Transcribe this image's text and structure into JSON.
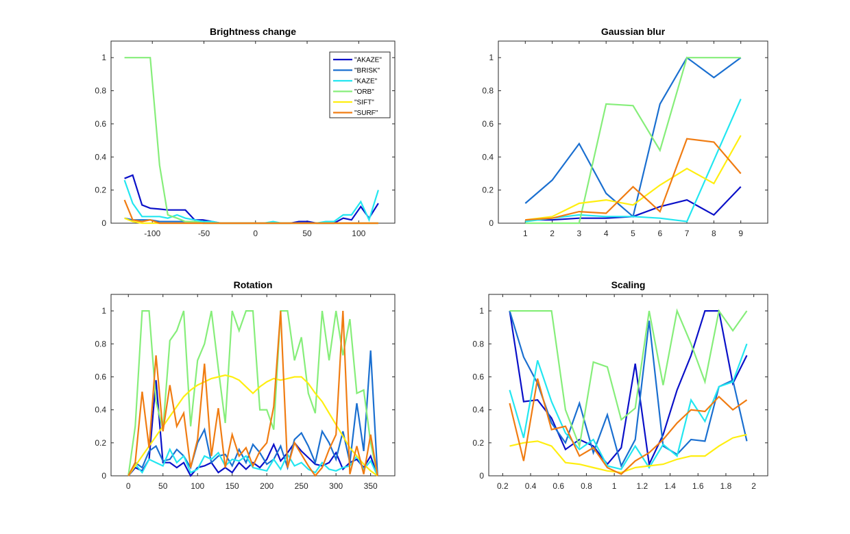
{
  "colors": {
    "AKAZE": "#0a10c8",
    "BRISK": "#1a6fd0",
    "KAZE": "#22e6f0",
    "ORB": "#86ee7a",
    "SIFT": "#ffee10",
    "SURF": "#f07c12"
  },
  "chart_data": [
    {
      "type": "line",
      "title": "Brightness change",
      "xlabel": "",
      "ylabel": "",
      "xlim": [
        -140,
        135
      ],
      "ylim": [
        0,
        1.1
      ],
      "xticks": [
        -100,
        -50,
        0,
        50,
        100
      ],
      "yticks": [
        0,
        0.2,
        0.4,
        0.6,
        0.8,
        1
      ],
      "legend": {
        "placement": "top-right",
        "entries": [
          "\"AKAZE\"",
          "\"BRISK\"",
          "\"KAZE\"",
          "\"ORB\"",
          "\"SIFT\"",
          "\"SURF\""
        ]
      },
      "x": [
        -127,
        -119,
        -110,
        -102,
        -93,
        -85,
        -76,
        -68,
        -59,
        -51,
        -42,
        -34,
        -25,
        -17,
        -8,
        0,
        8,
        17,
        25,
        34,
        42,
        51,
        59,
        68,
        76,
        85,
        93,
        102,
        110,
        119
      ],
      "series": [
        {
          "name": "\"AKAZE\"",
          "values": [
            0.27,
            0.29,
            0.11,
            0.09,
            0.085,
            0.08,
            0.08,
            0.08,
            0.02,
            0.02,
            0.01,
            0,
            0,
            0,
            0,
            0,
            0,
            0,
            0,
            0,
            0.01,
            0.01,
            0,
            0,
            0,
            0.03,
            0.02,
            0.1,
            0.03,
            0.12
          ]
        },
        {
          "name": "\"BRISK\"",
          "values": [
            0.03,
            0.02,
            0.02,
            0.02,
            0.01,
            0.01,
            0.01,
            0.01,
            0.01,
            0,
            0,
            0,
            0,
            0,
            0,
            0,
            0,
            0,
            0,
            0,
            0,
            0,
            0,
            0,
            0,
            0,
            0,
            0,
            0,
            0
          ]
        },
        {
          "name": "\"KAZE\"",
          "values": [
            0.26,
            0.12,
            0.04,
            0.04,
            0.04,
            0.03,
            0.05,
            0.03,
            0.02,
            0.01,
            0.01,
            0,
            0,
            0,
            0,
            0,
            0,
            0.01,
            0,
            0,
            0,
            0,
            0,
            0.01,
            0.01,
            0.05,
            0.05,
            0.13,
            0.02,
            0.2
          ]
        },
        {
          "name": "\"ORB\"",
          "values": [
            1,
            1,
            1,
            1,
            0.35,
            0.05,
            0.03,
            0.01,
            0.01,
            0,
            0,
            0,
            0,
            0,
            0,
            0,
            0,
            0,
            0,
            0,
            0,
            0,
            0,
            0,
            0,
            0,
            0,
            0,
            0,
            0
          ]
        },
        {
          "name": "\"SIFT\"",
          "values": [
            0.03,
            0.01,
            0,
            0,
            0,
            0,
            0,
            0,
            0,
            0,
            0,
            0,
            0,
            0,
            0,
            0,
            0,
            0,
            0,
            0,
            0,
            0,
            0,
            0,
            0,
            0,
            0,
            0,
            0,
            0
          ]
        },
        {
          "name": "\"SURF\"",
          "values": [
            0.14,
            0.02,
            0.01,
            0.02,
            0,
            0,
            0,
            0,
            0,
            0,
            0,
            0,
            0,
            0,
            0,
            0,
            0,
            0,
            0,
            0,
            0,
            0,
            0,
            0,
            0,
            0,
            0,
            0,
            0,
            0
          ]
        }
      ]
    },
    {
      "type": "line",
      "title": "Gaussian blur",
      "xlabel": "",
      "ylabel": "",
      "xlim": [
        0,
        10
      ],
      "ylim": [
        0,
        1.1
      ],
      "xticks": [
        1,
        2,
        3,
        4,
        5,
        6,
        7,
        8,
        9
      ],
      "yticks": [
        0,
        0.2,
        0.4,
        0.6,
        0.8,
        1
      ],
      "x": [
        1,
        2,
        3,
        4,
        5,
        6,
        7,
        8,
        9
      ],
      "series": [
        {
          "values": [
            0.02,
            0.02,
            0.03,
            0.03,
            0.04,
            0.1,
            0.14,
            0.05,
            0.22
          ]
        },
        {
          "values": [
            0.12,
            0.26,
            0.48,
            0.18,
            0.04,
            0.72,
            1,
            0.88,
            1
          ]
        },
        {
          "values": [
            0.01,
            0.03,
            0.05,
            0.04,
            0.04,
            0.03,
            0.01,
            0.38,
            0.75
          ]
        },
        {
          "values": [
            0,
            0,
            0,
            0.72,
            0.71,
            0.44,
            1,
            1,
            1
          ]
        },
        {
          "values": [
            0.02,
            0.04,
            0.12,
            0.14,
            0.11,
            0.23,
            0.33,
            0.24,
            0.53
          ]
        },
        {
          "values": [
            0.02,
            0.03,
            0.07,
            0.06,
            0.22,
            0.07,
            0.51,
            0.49,
            0.3
          ]
        }
      ]
    },
    {
      "type": "line",
      "title": "Rotation",
      "xlabel": "",
      "ylabel": "",
      "xlim": [
        -25,
        385
      ],
      "ylim": [
        0,
        1.1
      ],
      "xticks": [
        0,
        50,
        100,
        150,
        200,
        250,
        300,
        350
      ],
      "yticks": [
        0,
        0.2,
        0.4,
        0.6,
        0.8,
        1
      ],
      "x": [
        0,
        10,
        20,
        30,
        40,
        50,
        60,
        70,
        80,
        90,
        100,
        110,
        120,
        130,
        140,
        150,
        160,
        170,
        180,
        190,
        200,
        210,
        220,
        230,
        240,
        250,
        260,
        270,
        280,
        290,
        300,
        310,
        320,
        330,
        340,
        350,
        360
      ],
      "series": [
        {
          "values": [
            0,
            0.05,
            0.03,
            0.1,
            0.58,
            0.08,
            0.08,
            0.05,
            0.08,
            0,
            0.05,
            0.06,
            0.08,
            0.02,
            0.05,
            0.02,
            0.08,
            0.04,
            0.08,
            0.05,
            0.1,
            0.19,
            0.09,
            0.14,
            0.2,
            0.15,
            0.11,
            0.07,
            0.06,
            0.08,
            0.14,
            0.04,
            0.08,
            0.1,
            0.05,
            0.12,
            0
          ]
        },
        {
          "values": [
            0,
            0.08,
            0.05,
            0.15,
            0.18,
            0.09,
            0.1,
            0.16,
            0.12,
            0.05,
            0.2,
            0.28,
            0.08,
            0.12,
            0.13,
            0.06,
            0.16,
            0.08,
            0.19,
            0.14,
            0.07,
            0.1,
            0.18,
            0.05,
            0.22,
            0.26,
            0.18,
            0.08,
            0.27,
            0.2,
            0.1,
            0.27,
            0.08,
            0.44,
            0.15,
            0.76,
            0
          ]
        },
        {
          "values": [
            0,
            0.07,
            0.02,
            0.1,
            0.08,
            0.06,
            0.16,
            0.08,
            0.12,
            0.02,
            0.04,
            0.12,
            0.1,
            0.14,
            0.06,
            0.1,
            0.09,
            0.12,
            0.05,
            0.04,
            0.03,
            0.1,
            0.04,
            0.13,
            0.06,
            0.08,
            0.04,
            0.02,
            0.08,
            0.04,
            0.03,
            0.05,
            0.06,
            0.12,
            0.04,
            0.09,
            0
          ]
        },
        {
          "values": [
            0,
            0.3,
            1,
            1,
            0.45,
            0.28,
            0.82,
            0.88,
            1,
            0.3,
            0.7,
            0.8,
            1,
            0.65,
            0.32,
            1,
            0.88,
            1,
            1,
            0.4,
            0.4,
            0.28,
            1,
            1,
            0.7,
            0.84,
            0.5,
            0.38,
            1,
            0.7,
            1,
            0.73,
            0.95,
            0.5,
            0.52,
            0.2,
            0
          ]
        },
        {
          "values": [
            0,
            0.06,
            0.12,
            0.18,
            0.24,
            0.3,
            0.36,
            0.42,
            0.48,
            0.52,
            0.55,
            0.57,
            0.59,
            0.6,
            0.61,
            0.6,
            0.58,
            0.54,
            0.5,
            0.54,
            0.57,
            0.59,
            0.58,
            0.59,
            0.6,
            0.6,
            0.56,
            0.5,
            0.45,
            0.38,
            0.31,
            0.24,
            0.17,
            0.12,
            0.07,
            0.03,
            0
          ]
        },
        {
          "values": [
            0,
            0.08,
            0.51,
            0.17,
            0.73,
            0.27,
            0.55,
            0.3,
            0.38,
            0.05,
            0.22,
            0.68,
            0.12,
            0.41,
            0.05,
            0.25,
            0.12,
            0.17,
            0.06,
            0.15,
            0.2,
            0.42,
            1,
            0.05,
            0.2,
            0.13,
            0.06,
            0,
            0.05,
            0.16,
            0.25,
            1,
            0.01,
            0.18,
            0.01,
            0.25,
            0
          ]
        }
      ]
    },
    {
      "type": "line",
      "title": "Scaling",
      "xlabel": "",
      "ylabel": "",
      "xlim": [
        0.1,
        2.1
      ],
      "ylim": [
        0,
        1.1
      ],
      "xticks": [
        0.2,
        0.4,
        0.6,
        0.8,
        1,
        1.2,
        1.4,
        1.6,
        1.8,
        2
      ],
      "ytick_labels_override": {},
      "yticks": [
        0,
        0.2,
        0.4,
        0.6,
        0.8,
        1
      ],
      "x": [
        0.25,
        0.35,
        0.45,
        0.55,
        0.65,
        0.75,
        0.85,
        0.95,
        1.05,
        1.15,
        1.25,
        1.35,
        1.45,
        1.55,
        1.65,
        1.75,
        1.85,
        1.95
      ],
      "series": [
        {
          "values": [
            1,
            0.45,
            0.46,
            0.35,
            0.16,
            0.22,
            0.18,
            0.07,
            0.17,
            0.68,
            0.07,
            0.25,
            0.52,
            0.73,
            1,
            1,
            0.56,
            0.73
          ]
        },
        {
          "values": [
            1,
            0.72,
            0.56,
            0.32,
            0.2,
            0.44,
            0.14,
            0.37,
            0.06,
            0.22,
            0.94,
            0.18,
            0.13,
            0.22,
            0.21,
            0.54,
            0.58,
            0.21
          ]
        },
        {
          "values": [
            0.52,
            0.23,
            0.7,
            0.45,
            0.26,
            0.16,
            0.22,
            0.06,
            0.04,
            0.18,
            0.05,
            0.19,
            0.12,
            0.46,
            0.33,
            0.54,
            0.57,
            0.8
          ]
        },
        {
          "values": [
            1,
            1,
            1,
            1,
            0.4,
            0.18,
            0.69,
            0.66,
            0.34,
            0.41,
            1,
            0.55,
            1,
            0.8,
            0.57,
            1,
            0.88,
            1
          ]
        },
        {
          "values": [
            0.18,
            0.2,
            0.21,
            0.18,
            0.08,
            0.07,
            0.05,
            0.03,
            0.02,
            0.05,
            0.06,
            0.07,
            0.1,
            0.12,
            0.12,
            0.18,
            0.23,
            0.25
          ]
        },
        {
          "values": [
            0.44,
            0.09,
            0.59,
            0.28,
            0.3,
            0.12,
            0.17,
            0.05,
            0.01,
            0.09,
            0.14,
            0.22,
            0.32,
            0.4,
            0.39,
            0.48,
            0.4,
            0.46
          ]
        }
      ]
    }
  ]
}
